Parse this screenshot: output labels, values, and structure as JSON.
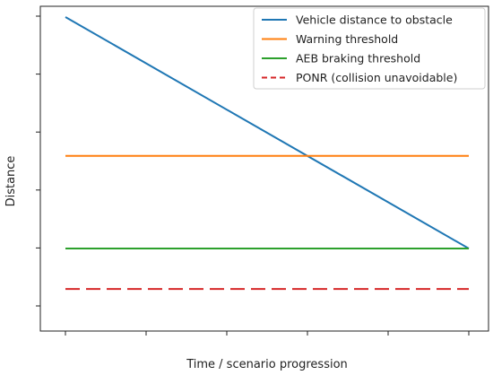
{
  "chart_data": {
    "type": "line",
    "xlabel": "Time / scenario progression",
    "ylabel": "Distance",
    "x_ticks_count": 6,
    "y_ticks_count": 6,
    "xlim": [
      0,
      5
    ],
    "ylim": [
      -0.56,
      5.3
    ],
    "grid": false,
    "legend_placement": "top-right",
    "series": [
      {
        "name": "Vehicle distance to obstacle",
        "color": "#1f77b4",
        "style": "solid",
        "x": [
          0,
          5
        ],
        "y": [
          5.0,
          1.0
        ]
      },
      {
        "name": "Warning threshold",
        "color": "#ff7f0e",
        "style": "solid",
        "x": [
          0,
          5
        ],
        "y": [
          2.6,
          2.6
        ]
      },
      {
        "name": "AEB braking threshold",
        "color": "#2ca02c",
        "style": "solid",
        "x": [
          0,
          5
        ],
        "y": [
          1.0,
          1.0
        ]
      },
      {
        "name": "PONR (collision unavoidable)",
        "color": "#d62728",
        "style": "dashed",
        "x": [
          0,
          5
        ],
        "y": [
          0.3,
          0.3
        ]
      }
    ]
  }
}
